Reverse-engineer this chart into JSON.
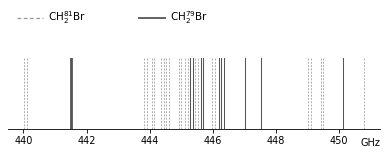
{
  "xlim": [
    439.5,
    451.3
  ],
  "ylim": [
    0,
    1
  ],
  "xticks": [
    440,
    442,
    444,
    446,
    448,
    450
  ],
  "xlabel": "GHz",
  "legend_label_81": "CH$_2^{81}$Br",
  "legend_label_79": "CH$_2^{79}$Br",
  "line_color_dashed": "#999999",
  "line_color_solid": "#555555",
  "bg_color": "#ffffff",
  "dashed_81Br": [
    440.02,
    440.1,
    443.82,
    443.9,
    444.07,
    444.15,
    444.37,
    444.45,
    444.53,
    444.61,
    444.92,
    445.0,
    445.12,
    445.2,
    445.45,
    445.53,
    445.98,
    446.06,
    449.02,
    449.1,
    449.42,
    449.5,
    450.78
  ],
  "solid_79Br": [
    441.5,
    445.28,
    445.36,
    445.62,
    445.7,
    446.18,
    446.26,
    446.35,
    447.02,
    447.52,
    450.12
  ]
}
